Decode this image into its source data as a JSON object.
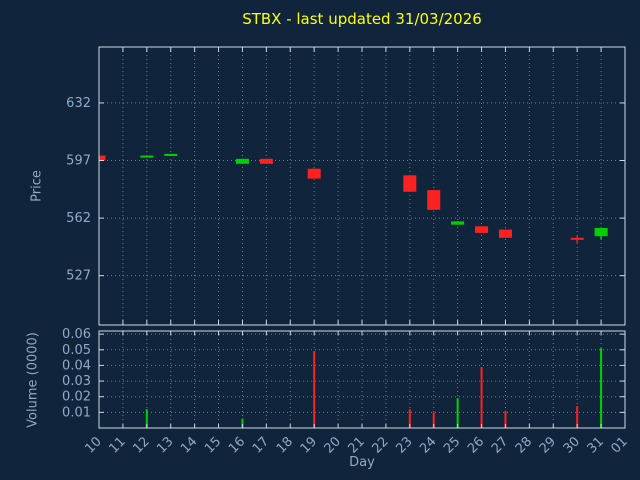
{
  "chart_data": {
    "type": "candlestick",
    "title": "STBX - last updated 31/03/2026",
    "xlabel": "Day",
    "price_ylabel": "Price",
    "volume_ylabel": "Volume (0000)",
    "x_ticklabels": [
      "10",
      "11",
      "12",
      "13",
      "14",
      "15",
      "16",
      "17",
      "18",
      "19",
      "20",
      "21",
      "22",
      "23",
      "24",
      "25",
      "26",
      "27",
      "28",
      "29",
      "30",
      "31",
      "01"
    ],
    "price_ticks": [
      527,
      562,
      597,
      632
    ],
    "price_ylim": [
      497,
      666
    ],
    "volume_ticklabels": [
      "0.01",
      "0.02",
      "0.03",
      "0.04",
      "0.05",
      "0.06"
    ],
    "volume_ticks": [
      0.01,
      0.02,
      0.03,
      0.04,
      0.05,
      0.06
    ],
    "volume_ylim": [
      0,
      0.062
    ],
    "grid": "dotted",
    "candles": [
      {
        "day": "10",
        "open": 600,
        "close": 597,
        "high": 600,
        "low": 597
      },
      {
        "day": "12",
        "open": 599,
        "close": 600,
        "high": 600,
        "low": 599
      },
      {
        "day": "13",
        "open": 600,
        "close": 601,
        "high": 601,
        "low": 600
      },
      {
        "day": "16",
        "open": 595,
        "close": 598,
        "high": 598,
        "low": 595
      },
      {
        "day": "17",
        "open": 598,
        "close": 595,
        "high": 598,
        "low": 595
      },
      {
        "day": "19",
        "open": 592,
        "close": 586,
        "high": 592,
        "low": 586
      },
      {
        "day": "23",
        "open": 588,
        "close": 578,
        "high": 588,
        "low": 578
      },
      {
        "day": "24",
        "open": 579,
        "close": 567,
        "high": 579,
        "low": 567
      },
      {
        "day": "25",
        "open": 558,
        "close": 560,
        "high": 560,
        "low": 558
      },
      {
        "day": "26",
        "open": 557,
        "close": 553,
        "high": 557,
        "low": 553
      },
      {
        "day": "27",
        "open": 555,
        "close": 550,
        "high": 555,
        "low": 550
      },
      {
        "day": "30",
        "open": 550,
        "close": 549,
        "high": 551,
        "low": 547
      },
      {
        "day": "31",
        "open": 551,
        "close": 556,
        "high": 556,
        "low": 549
      }
    ],
    "volumes": [
      {
        "day": "12",
        "value": 0.012
      },
      {
        "day": "16",
        "value": 0.006
      },
      {
        "day": "19",
        "value": 0.049
      },
      {
        "day": "23",
        "value": 0.012
      },
      {
        "day": "24",
        "value": 0.01
      },
      {
        "day": "25",
        "value": 0.019
      },
      {
        "day": "26",
        "value": 0.039
      },
      {
        "day": "27",
        "value": 0.011
      },
      {
        "day": "30",
        "value": 0.014
      },
      {
        "day": "31",
        "value": 0.051
      }
    ],
    "colors": {
      "up": "#00d200",
      "down": "#ff2020",
      "title": "#ffff00",
      "axis_text": "#8fa9c7",
      "grid": "#6e7f90",
      "frame": "#cdd9e5",
      "background": "#10253b"
    }
  }
}
